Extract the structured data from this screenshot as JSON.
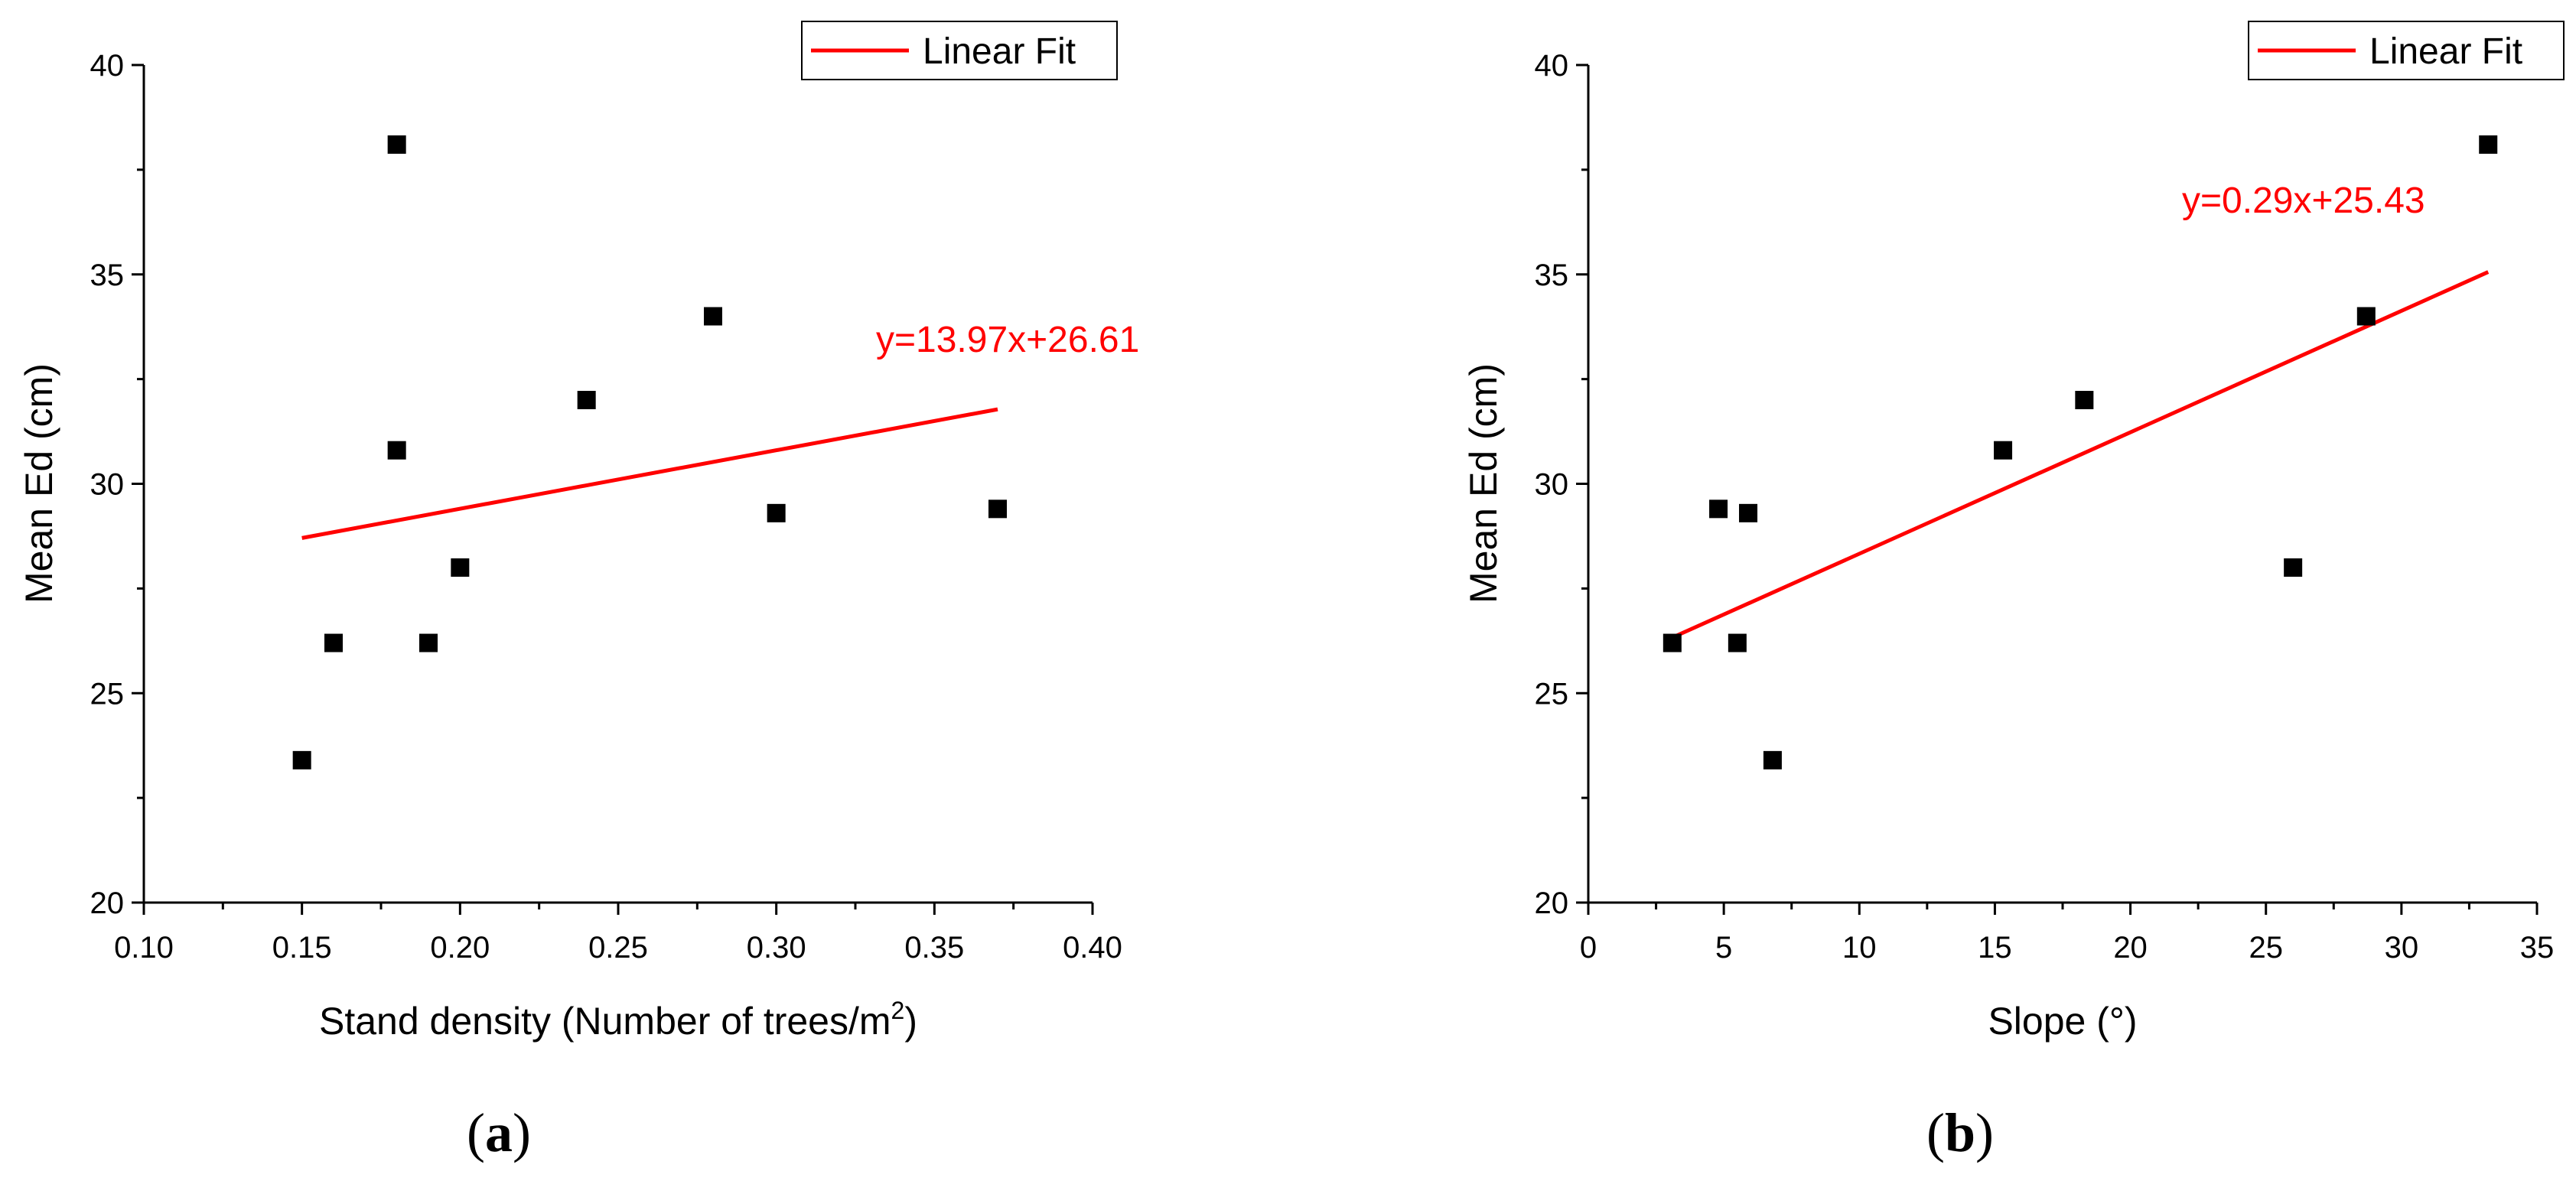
{
  "colors": {
    "fit": "#ff0000",
    "points": "#000000",
    "axis": "#000000"
  },
  "chart_data": [
    {
      "type": "scatter",
      "panel_label": "(a)",
      "panel_letter": "a",
      "xlabel_main": "Stand density (Number of trees/m",
      "xlabel_sup": "2",
      "xlabel_tail": ")",
      "ylabel": "Mean Ed (cm)",
      "xlim": [
        0.1,
        0.4
      ],
      "ylim": [
        20,
        40
      ],
      "x_ticks": [
        "0.10",
        "0.15",
        "0.20",
        "0.25",
        "0.30",
        "0.35",
        "0.40"
      ],
      "y_ticks": [
        "20",
        "25",
        "30",
        "35",
        "40"
      ],
      "legend": "Linear Fit",
      "legend_position": "top-right",
      "fit_equation": "y=13.97x+26.61",
      "fit": {
        "slope": 13.97,
        "intercept": 26.61,
        "x_range": [
          0.15,
          0.37
        ]
      },
      "points": [
        {
          "x": 0.15,
          "y": 23.4
        },
        {
          "x": 0.16,
          "y": 26.2
        },
        {
          "x": 0.18,
          "y": 38.1
        },
        {
          "x": 0.18,
          "y": 30.8
        },
        {
          "x": 0.19,
          "y": 26.2
        },
        {
          "x": 0.2,
          "y": 28.0
        },
        {
          "x": 0.24,
          "y": 32.0
        },
        {
          "x": 0.28,
          "y": 34.0
        },
        {
          "x": 0.3,
          "y": 29.3
        },
        {
          "x": 0.37,
          "y": 29.4
        }
      ]
    },
    {
      "type": "scatter",
      "panel_label": "(b)",
      "panel_letter": "b",
      "xlabel_main": "Slope (°)",
      "xlabel_sup": "",
      "xlabel_tail": "",
      "ylabel": "Mean Ed (cm)",
      "xlim": [
        0,
        35
      ],
      "ylim": [
        20,
        40
      ],
      "x_ticks": [
        "0",
        "5",
        "10",
        "15",
        "20",
        "25",
        "30",
        "35"
      ],
      "y_ticks": [
        "20",
        "25",
        "30",
        "35",
        "40"
      ],
      "legend": "Linear Fit",
      "legend_position": "top-right",
      "fit_equation": "y=0.29x+25.43",
      "fit": {
        "slope": 0.29,
        "intercept": 25.43,
        "x_range": [
          3.1,
          33.2
        ]
      },
      "points": [
        {
          "x": 3.1,
          "y": 26.2
        },
        {
          "x": 4.8,
          "y": 29.4
        },
        {
          "x": 5.5,
          "y": 26.2
        },
        {
          "x": 5.9,
          "y": 29.3
        },
        {
          "x": 6.8,
          "y": 23.4
        },
        {
          "x": 15.3,
          "y": 30.8
        },
        {
          "x": 18.3,
          "y": 32.0
        },
        {
          "x": 26.0,
          "y": 28.0
        },
        {
          "x": 28.7,
          "y": 34.0
        },
        {
          "x": 33.2,
          "y": 38.1
        }
      ]
    }
  ]
}
